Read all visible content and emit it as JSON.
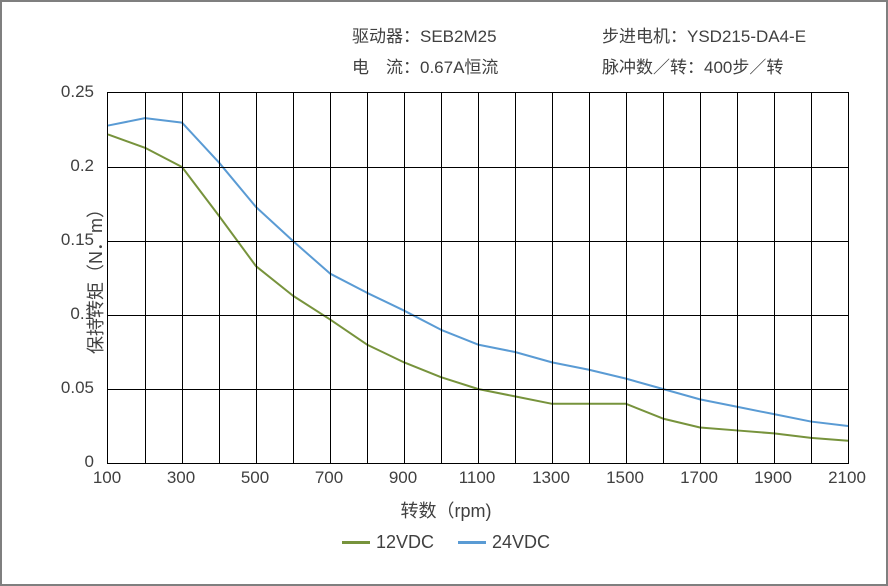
{
  "header": {
    "row1": {
      "left_label": "驱动器：",
      "left_value": "SEB2M25",
      "right_label": "步进电机：",
      "right_value": "YSD215-DA4-E"
    },
    "row2": {
      "left_label": "电　流：",
      "left_value": "0.67A恒流",
      "right_label": "脉冲数／转：",
      "right_value": "400步／转"
    }
  },
  "chart": {
    "type": "line",
    "background_color": "#ffffff",
    "border_color": "#7f7f7f",
    "grid_color": "#000000",
    "xlabel": "转数（rpm)",
    "ylabel": "保持转矩（N．m）",
    "label_fontsize": 18,
    "tick_fontsize": 17,
    "text_color": "#404040",
    "x_ticks": [
      100,
      300,
      500,
      700,
      900,
      1100,
      1300,
      1500,
      1700,
      1900,
      2100
    ],
    "x_minor_step": 100,
    "xlim": [
      100,
      2100
    ],
    "y_ticks": [
      0,
      0.05,
      0.1,
      0.15,
      0.2,
      0.25
    ],
    "y_tick_labels": [
      "0",
      "0.05",
      "0.1",
      "0.15",
      "0.2",
      "0.25"
    ],
    "ylim": [
      0,
      0.25
    ],
    "line_width": 2,
    "series": [
      {
        "name": "12VDC",
        "color": "#77933c",
        "x": [
          100,
          200,
          300,
          400,
          500,
          600,
          700,
          800,
          900,
          1000,
          1100,
          1200,
          1300,
          1400,
          1500,
          1600,
          1700,
          1800,
          1900,
          2000,
          2100
        ],
        "y": [
          0.222,
          0.213,
          0.2,
          0.167,
          0.133,
          0.113,
          0.097,
          0.08,
          0.068,
          0.058,
          0.05,
          0.045,
          0.04,
          0.04,
          0.04,
          0.03,
          0.024,
          0.022,
          0.02,
          0.017,
          0.015
        ]
      },
      {
        "name": "24VDC",
        "color": "#5a9bd4",
        "x": [
          100,
          200,
          300,
          400,
          500,
          600,
          700,
          800,
          900,
          1000,
          1100,
          1200,
          1300,
          1400,
          1500,
          1600,
          1700,
          1800,
          1900,
          2000,
          2100
        ],
        "y": [
          0.228,
          0.233,
          0.23,
          0.203,
          0.173,
          0.15,
          0.128,
          0.115,
          0.103,
          0.09,
          0.08,
          0.075,
          0.068,
          0.063,
          0.057,
          0.05,
          0.043,
          0.038,
          0.033,
          0.028,
          0.025
        ]
      }
    ],
    "legend": {
      "items": [
        {
          "label": "12VDC",
          "color": "#77933c"
        },
        {
          "label": "24VDC",
          "color": "#5a9bd4"
        }
      ]
    }
  }
}
